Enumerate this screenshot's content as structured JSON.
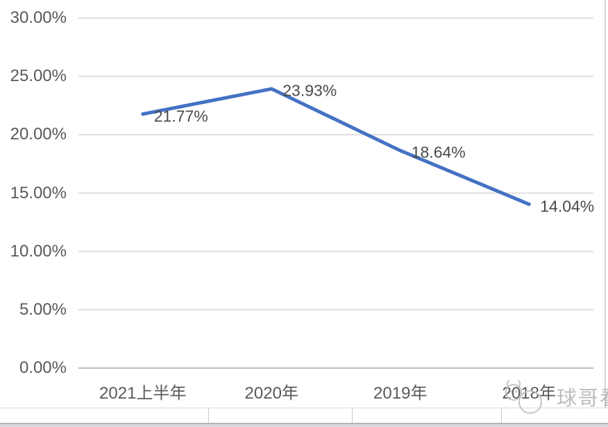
{
  "chart_data": {
    "type": "line",
    "title": "",
    "categories": [
      "2021上半年",
      "2020年",
      "2019年",
      "2018年"
    ],
    "series": [
      {
        "name": "",
        "values": [
          21.77,
          23.93,
          18.64,
          14.04
        ],
        "point_labels": [
          "21.77%",
          "23.93%",
          "18.64%",
          "14.04%"
        ]
      }
    ],
    "xlabel": "",
    "ylabel": "",
    "ylim": [
      0,
      30
    ],
    "yticks": [
      {
        "value": 0,
        "label": "0.00%"
      },
      {
        "value": 5,
        "label": "5.00%"
      },
      {
        "value": 10,
        "label": "10.00%"
      },
      {
        "value": 15,
        "label": "15.00%"
      },
      {
        "value": 20,
        "label": "20.00%"
      },
      {
        "value": 25,
        "label": "25.00%"
      },
      {
        "value": 30,
        "label": "30.00%"
      }
    ],
    "grid": true,
    "legend": "none",
    "line_color": "#4472C4",
    "gridline_color": "#dcdcdc",
    "zero_line_color": "#bdbdbd",
    "axis_label_color": "#595959",
    "data_label_color": "#4a4a4a"
  },
  "watermark": {
    "text": "球哥看风"
  }
}
